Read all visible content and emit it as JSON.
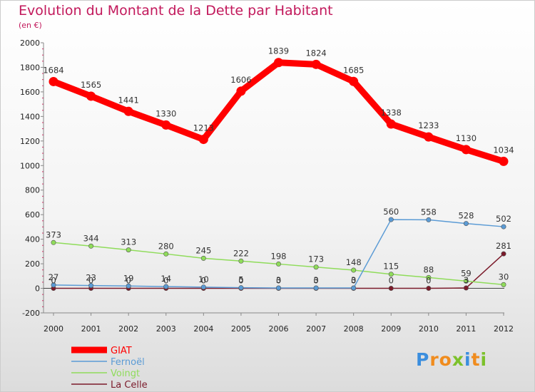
{
  "chart_data": {
    "type": "line",
    "title": "Evolution du Montant de la Dette par Habitant",
    "subtitle": "(en €)",
    "x": [
      "2000",
      "2001",
      "2002",
      "2003",
      "2004",
      "2005",
      "2006",
      "2007",
      "2008",
      "2009",
      "2010",
      "2011",
      "2012"
    ],
    "ylim": [
      -200,
      2000
    ],
    "yticks": [
      -200,
      0,
      200,
      400,
      600,
      800,
      1000,
      1200,
      1400,
      1600,
      1800,
      2000
    ],
    "grid": false,
    "legend": "bottom-left",
    "series": [
      {
        "name": "GIAT",
        "color": "#ff0000",
        "values": [
          1684,
          1565,
          1441,
          1330,
          1213,
          1606,
          1839,
          1824,
          1685,
          1338,
          1233,
          1130,
          1034
        ]
      },
      {
        "name": "Fernoël",
        "color": "#5b9bd5",
        "values": [
          27,
          23,
          19,
          14,
          10,
          5,
          3,
          3,
          3,
          560,
          558,
          528,
          502
        ]
      },
      {
        "name": "Voingt",
        "color": "#8fdc5a",
        "values": [
          373,
          344,
          313,
          280,
          245,
          222,
          198,
          173,
          148,
          115,
          88,
          59,
          30
        ]
      },
      {
        "name": "La Celle",
        "color": "#7b1a2a",
        "values": [
          0,
          0,
          0,
          0,
          0,
          0,
          0,
          0,
          0,
          0,
          0,
          3,
          281
        ]
      }
    ]
  },
  "logo": {
    "letters": [
      "P",
      "r",
      "o",
      "x",
      "i",
      "t",
      "i"
    ],
    "colors": [
      "#3b8ede",
      "#f08c1e",
      "#f08c1e",
      "#7cc12b",
      "#3b8ede",
      "#f08c1e",
      "#7cc12b"
    ]
  }
}
